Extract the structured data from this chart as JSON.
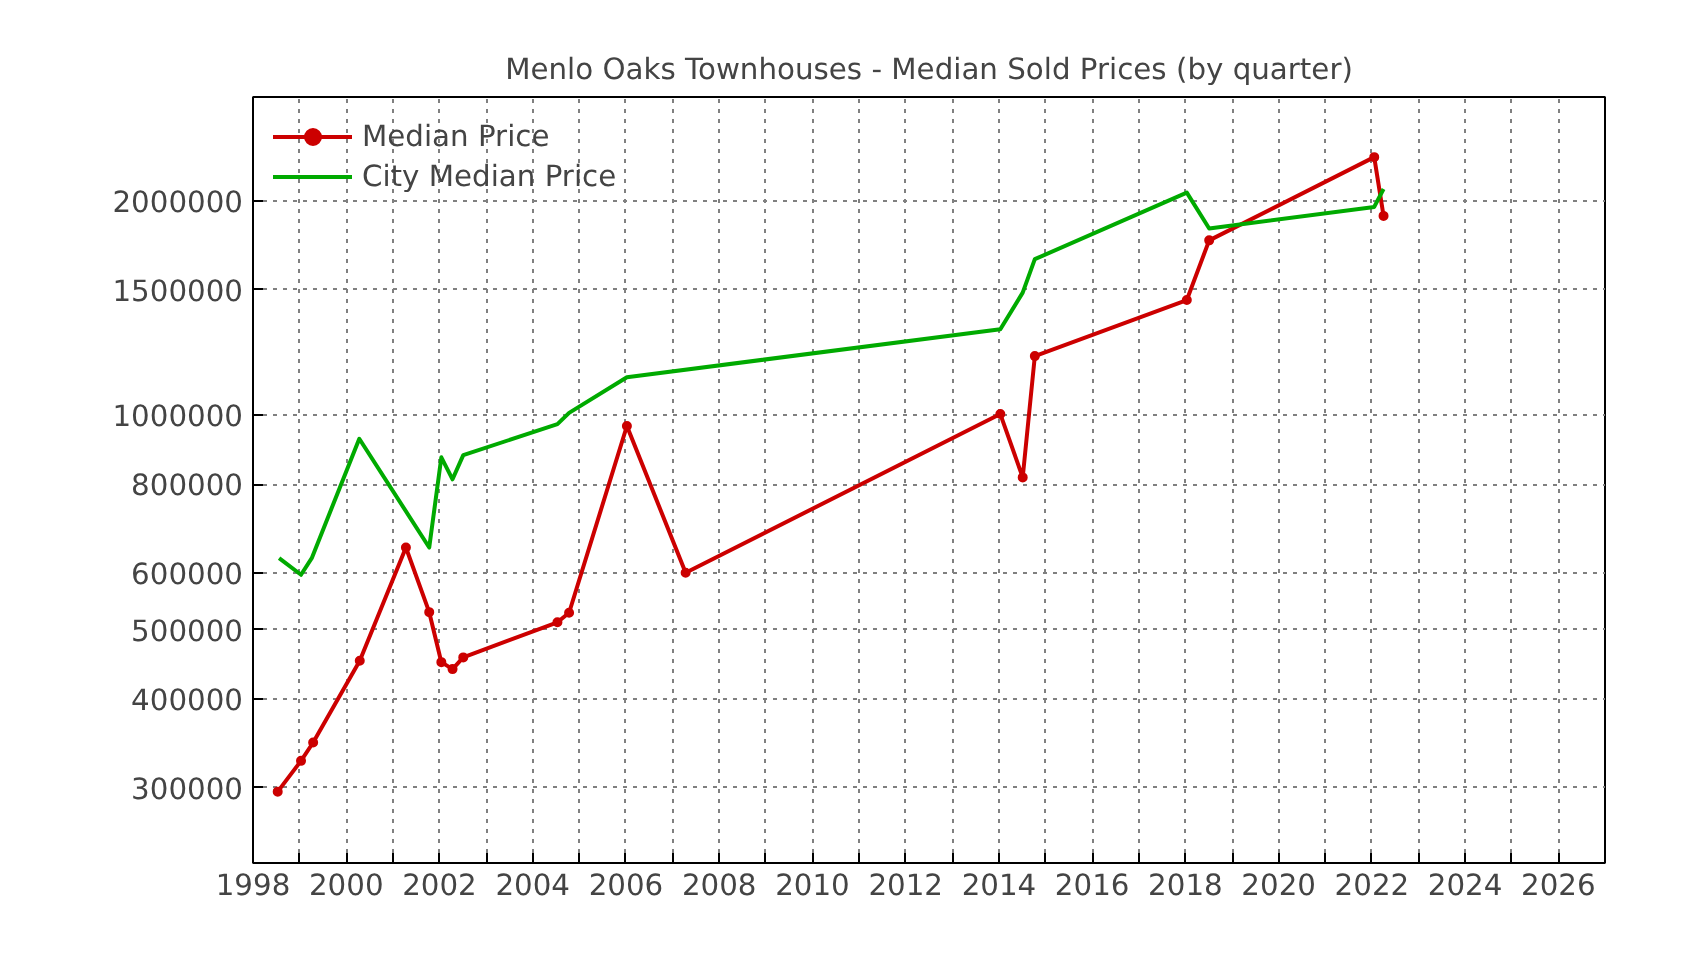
{
  "chart_data": {
    "type": "line",
    "title": "Menlo Oaks Townhouses - Median Sold Prices (by quarter)",
    "x": [
      1998.53,
      1999.03,
      1999.29,
      2000.29,
      2001.28,
      2001.78,
      2002.04,
      2002.28,
      2002.51,
      2004.53,
      2004.78,
      2006.02,
      2007.28,
      2014.03,
      2014.51,
      2014.77,
      2018.03,
      2018.51,
      2022.05,
      2022.25
    ],
    "series": [
      {
        "name": "Median Price",
        "color": "#cc0000",
        "marker": "circle",
        "values": [
          296000,
          327000,
          347000,
          452000,
          652000,
          529000,
          450000,
          440000,
          457000,
          512000,
          528000,
          966000,
          601000,
          1004000,
          818000,
          1211000,
          1452000,
          1761000,
          2305000,
          1906000
        ]
      },
      {
        "name": "City Median Price",
        "color": "#00aa00",
        "marker": "none",
        "x": [
          1998.56,
          1999.03,
          1999.26,
          2000.28,
          2001.78,
          2002.04,
          2002.28,
          2002.51,
          2004.53,
          2004.78,
          2006.02,
          2014.03,
          2014.51,
          2014.77,
          2018.03,
          2018.51,
          2022.05,
          2022.25
        ],
        "values": [
          630000,
          597000,
          630000,
          927000,
          652000,
          873000,
          813000,
          879000,
          972000,
          1008000,
          1131000,
          1321000,
          1487000,
          1657000,
          2055000,
          1830000,
          1962000,
          2079000
        ]
      }
    ],
    "xlim": [
      1998,
      2027
    ],
    "xticks": [
      1998,
      {
        "value": 1999,
        "label": null
      },
      2000,
      {
        "value": 2001,
        "label": null
      },
      2002,
      {
        "value": 2003,
        "label": null
      },
      2004,
      {
        "value": 2005,
        "label": null
      },
      2006,
      {
        "value": 2007,
        "label": null
      },
      2008,
      {
        "value": 2009,
        "label": null
      },
      2010,
      {
        "value": 2011,
        "label": null
      },
      2012,
      {
        "value": 2013,
        "label": null
      },
      2014,
      {
        "value": 2015,
        "label": null
      },
      2016,
      {
        "value": 2017,
        "label": null
      },
      2018,
      {
        "value": 2019,
        "label": null
      },
      2020,
      {
        "value": 2021,
        "label": null
      },
      2022,
      {
        "value": 2023,
        "label": null
      },
      2024,
      {
        "value": 2025,
        "label": null
      },
      2026
    ],
    "ylim": [
      235000,
      2800000
    ],
    "yticks": [
      300000,
      400000,
      500000,
      600000,
      800000,
      1000000,
      1500000,
      2000000
    ],
    "log": "y",
    "grid": true,
    "legend": "top left",
    "line_style": "solid"
  }
}
